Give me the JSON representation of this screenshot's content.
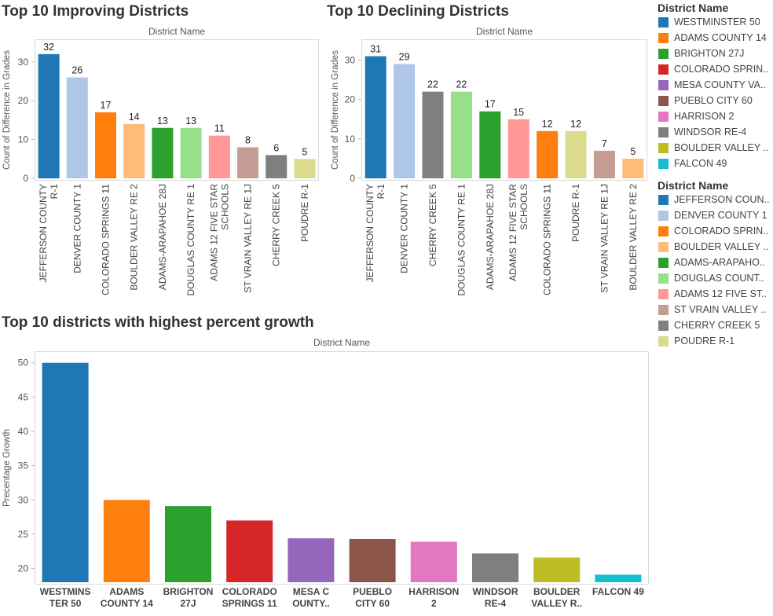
{
  "chart_data": [
    {
      "id": "improving",
      "type": "bar",
      "title": "Top 10 Improving Districts",
      "subtitle": "District Name",
      "ylabel": "Count of Difference in Grades",
      "ylim": [
        0,
        34
      ],
      "yticks": [
        0,
        10,
        20,
        30
      ],
      "categories": [
        "JEFFERSON COUNTY R-1",
        "DENVER COUNTY 1",
        "COLORADO SPRINGS 11",
        "BOULDER VALLEY RE 2",
        "ADAMS-ARAPAHOE 28J",
        "DOUGLAS COUNTY RE 1",
        "ADAMS 12 FIVE STAR SCHOOLS",
        "ST VRAIN VALLEY RE 1J",
        "CHERRY CREEK 5",
        "POUDRE R-1"
      ],
      "tick_lines": [
        [
          "JEFFERSON COUNTY",
          "R-1"
        ],
        [
          "DENVER COUNTY 1"
        ],
        [
          "COLORADO SPRINGS 11"
        ],
        [
          "BOULDER VALLEY RE 2"
        ],
        [
          "ADAMS-ARAPAHOE 28J"
        ],
        [
          "DOUGLAS COUNTY RE 1"
        ],
        [
          "ADAMS 12 FIVE STAR",
          "SCHOOLS"
        ],
        [
          "ST VRAIN VALLEY RE 1J"
        ],
        [
          "CHERRY CREEK 5"
        ],
        [
          "POUDRE R-1"
        ]
      ],
      "values": [
        32,
        26,
        17,
        14,
        13,
        13,
        11,
        8,
        6,
        5
      ],
      "colors": [
        "#1f77b4",
        "#aec7e8",
        "#ff7f0e",
        "#ffbb78",
        "#2ca02c",
        "#98df8a",
        "#ff9896",
        "#c49c94",
        "#7f7f7f",
        "#dbdb8d"
      ],
      "data_labels": true,
      "grid": false
    },
    {
      "id": "declining",
      "type": "bar",
      "title": "Top 10 Declining Districts",
      "subtitle": "District Name",
      "ylabel": "Count of Difference in Grades",
      "ylim": [
        0,
        33.5
      ],
      "yticks": [
        0,
        10,
        20,
        30
      ],
      "categories": [
        "JEFFERSON COUNTY R-1",
        "DENVER COUNTY 1",
        "CHERRY CREEK 5",
        "DOUGLAS COUNTY RE 1",
        "ADAMS-ARAPAHOE 28J",
        "ADAMS 12 FIVE STAR SCHOOLS",
        "COLORADO SPRINGS 11",
        "POUDRE R-1",
        "ST VRAIN VALLEY RE 1J",
        "BOULDER VALLEY RE 2"
      ],
      "tick_lines": [
        [
          "JEFFERSON COUNTY",
          "R-1"
        ],
        [
          "DENVER COUNTY 1"
        ],
        [
          "CHERRY CREEK 5"
        ],
        [
          "DOUGLAS COUNTY RE 1"
        ],
        [
          "ADAMS-ARAPAHOE 28J"
        ],
        [
          "ADAMS 12 FIVE STAR",
          "SCHOOLS"
        ],
        [
          "COLORADO SPRINGS 11"
        ],
        [
          "POUDRE R-1"
        ],
        [
          "ST VRAIN VALLEY RE 1J"
        ],
        [
          "BOULDER VALLEY RE 2"
        ]
      ],
      "values": [
        31,
        29,
        22,
        22,
        17,
        15,
        12,
        12,
        7,
        5
      ],
      "colors": [
        "#1f77b4",
        "#aec7e8",
        "#7f7f7f",
        "#98df8a",
        "#2ca02c",
        "#ff9896",
        "#ff7f0e",
        "#dbdb8d",
        "#c49c94",
        "#ffbb78"
      ],
      "data_labels": true,
      "grid": false
    },
    {
      "id": "growth",
      "type": "bar",
      "title": "Top 10 districts with highest percent growth",
      "subtitle": "District Name",
      "ylabel": "Precentage Growth",
      "ylim": [
        18,
        51
      ],
      "yticks": [
        20,
        25,
        30,
        35,
        40,
        45,
        50
      ],
      "categories": [
        "WESTMINSTER 50",
        "ADAMS COUNTY 14",
        "BRIGHTON 27J",
        "COLORADO SPRINGS 11",
        "MESA COUNTY..",
        "PUEBLO CITY 60",
        "HARRISON 2",
        "WINDSOR RE-4",
        "BOULDER VALLEY R..",
        "FALCON 49"
      ],
      "tick_lines": [
        [
          "WESTMINS",
          "TER 50"
        ],
        [
          "ADAMS",
          "COUNTY 14"
        ],
        [
          "BRIGHTON",
          "27J"
        ],
        [
          "COLORADO",
          "SPRINGS 11"
        ],
        [
          "MESA C",
          "OUNTY.."
        ],
        [
          "PUEBLO",
          "CITY 60"
        ],
        [
          "HARRISON",
          "2"
        ],
        [
          "WINDSOR",
          "RE-4"
        ],
        [
          "BOULDER",
          "VALLEY R.."
        ],
        [
          "FALCON 49"
        ]
      ],
      "values": [
        50.0,
        30.0,
        29.1,
        27.0,
        24.4,
        24.3,
        23.9,
        22.2,
        21.6,
        19.1
      ],
      "colors": [
        "#1f77b4",
        "#ff7f0e",
        "#2ca02c",
        "#d62728",
        "#9467bd",
        "#8c564b",
        "#e377c2",
        "#7f7f7f",
        "#bcbd22",
        "#17becf"
      ],
      "data_labels": false,
      "grid": false
    }
  ],
  "legends": [
    {
      "title": "District Name",
      "items": [
        {
          "label": "WESTMINSTER 50",
          "color": "#1f77b4"
        },
        {
          "label": "ADAMS COUNTY 14",
          "color": "#ff7f0e"
        },
        {
          "label": "BRIGHTON 27J",
          "color": "#2ca02c"
        },
        {
          "label": "COLORADO SPRIN..",
          "color": "#d62728"
        },
        {
          "label": "MESA COUNTY VA..",
          "color": "#9467bd"
        },
        {
          "label": "PUEBLO CITY 60",
          "color": "#8c564b"
        },
        {
          "label": "HARRISON 2",
          "color": "#e377c2"
        },
        {
          "label": "WINDSOR RE-4",
          "color": "#7f7f7f"
        },
        {
          "label": "BOULDER VALLEY ..",
          "color": "#bcbd22"
        },
        {
          "label": "FALCON 49",
          "color": "#17becf"
        }
      ]
    },
    {
      "title": "District Name",
      "items": [
        {
          "label": "JEFFERSON COUN..",
          "color": "#1f77b4"
        },
        {
          "label": "DENVER COUNTY 1",
          "color": "#aec7e8"
        },
        {
          "label": "COLORADO SPRIN..",
          "color": "#ff7f0e"
        },
        {
          "label": "BOULDER VALLEY ..",
          "color": "#ffbb78"
        },
        {
          "label": "ADAMS-ARAPAHO..",
          "color": "#2ca02c"
        },
        {
          "label": "DOUGLAS COUNT..",
          "color": "#98df8a"
        },
        {
          "label": "ADAMS 12 FIVE ST..",
          "color": "#ff9896"
        },
        {
          "label": "ST VRAIN VALLEY ..",
          "color": "#c49c94"
        },
        {
          "label": "CHERRY CREEK 5",
          "color": "#7f7f7f"
        },
        {
          "label": "POUDRE R-1",
          "color": "#dbdb8d"
        }
      ]
    }
  ]
}
